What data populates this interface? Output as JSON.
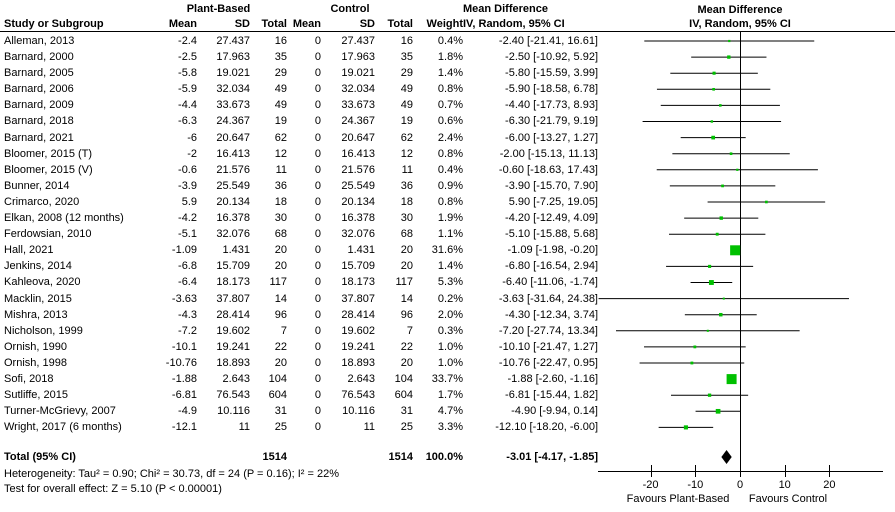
{
  "header": {
    "col_study": "Study or Subgroup",
    "group1": "Plant-Based",
    "group2": "Control",
    "col_mean": "Mean",
    "col_sd": "SD",
    "col_total": "Total",
    "col_weight": "Weight",
    "md_line1": "Mean Difference",
    "md_line2": "IV, Random, 95% CI"
  },
  "chart_data": {
    "type": "forest",
    "effect_measure": "Mean Difference",
    "model": "IV, Random, 95% CI",
    "marker_color": "#00C000",
    "line_color": "#000000",
    "diamond_color": "#000000",
    "studies": [
      {
        "name": "Alleman, 2013",
        "mean1": "-2.4",
        "sd1": "27.437",
        "n1": "16",
        "mean2": "0",
        "sd2": "27.437",
        "n2": "16",
        "weight": "0.4%",
        "ci_text": "-2.40 [-21.41, 16.61]",
        "md": -2.4,
        "lo": -21.41,
        "hi": 16.61,
        "w": 0.4
      },
      {
        "name": "Barnard, 2000",
        "mean1": "-2.5",
        "sd1": "17.963",
        "n1": "35",
        "mean2": "0",
        "sd2": "17.963",
        "n2": "35",
        "weight": "1.8%",
        "ci_text": "-2.50 [-10.92, 5.92]",
        "md": -2.5,
        "lo": -10.92,
        "hi": 5.92,
        "w": 1.8
      },
      {
        "name": "Barnard, 2005",
        "mean1": "-5.8",
        "sd1": "19.021",
        "n1": "29",
        "mean2": "0",
        "sd2": "19.021",
        "n2": "29",
        "weight": "1.4%",
        "ci_text": "-5.80 [-15.59, 3.99]",
        "md": -5.8,
        "lo": -15.59,
        "hi": 3.99,
        "w": 1.4
      },
      {
        "name": "Barnard, 2006",
        "mean1": "-5.9",
        "sd1": "32.034",
        "n1": "49",
        "mean2": "0",
        "sd2": "32.034",
        "n2": "49",
        "weight": "0.8%",
        "ci_text": "-5.90 [-18.58, 6.78]",
        "md": -5.9,
        "lo": -18.58,
        "hi": 6.78,
        "w": 0.8
      },
      {
        "name": "Barnard, 2009",
        "mean1": "-4.4",
        "sd1": "33.673",
        "n1": "49",
        "mean2": "0",
        "sd2": "33.673",
        "n2": "49",
        "weight": "0.7%",
        "ci_text": "-4.40 [-17.73, 8.93]",
        "md": -4.4,
        "lo": -17.73,
        "hi": 8.93,
        "w": 0.7
      },
      {
        "name": "Barnard, 2018",
        "mean1": "-6.3",
        "sd1": "24.367",
        "n1": "19",
        "mean2": "0",
        "sd2": "24.367",
        "n2": "19",
        "weight": "0.6%",
        "ci_text": "-6.30 [-21.79, 9.19]",
        "md": -6.3,
        "lo": -21.79,
        "hi": 9.19,
        "w": 0.6
      },
      {
        "name": "Barnard, 2021",
        "mean1": "-6",
        "sd1": "20.647",
        "n1": "62",
        "mean2": "0",
        "sd2": "20.647",
        "n2": "62",
        "weight": "2.4%",
        "ci_text": "-6.00 [-13.27, 1.27]",
        "md": -6.0,
        "lo": -13.27,
        "hi": 1.27,
        "w": 2.4
      },
      {
        "name": "Bloomer, 2015 (T)",
        "mean1": "-2",
        "sd1": "16.413",
        "n1": "12",
        "mean2": "0",
        "sd2": "16.413",
        "n2": "12",
        "weight": "0.8%",
        "ci_text": "-2.00 [-15.13, 11.13]",
        "md": -2.0,
        "lo": -15.13,
        "hi": 11.13,
        "w": 0.8
      },
      {
        "name": "Bloomer, 2015 (V)",
        "mean1": "-0.6",
        "sd1": "21.576",
        "n1": "11",
        "mean2": "0",
        "sd2": "21.576",
        "n2": "11",
        "weight": "0.4%",
        "ci_text": "-0.60 [-18.63, 17.43]",
        "md": -0.6,
        "lo": -18.63,
        "hi": 17.43,
        "w": 0.4
      },
      {
        "name": "Bunner, 2014",
        "mean1": "-3.9",
        "sd1": "25.549",
        "n1": "36",
        "mean2": "0",
        "sd2": "25.549",
        "n2": "36",
        "weight": "0.9%",
        "ci_text": "-3.90 [-15.70, 7.90]",
        "md": -3.9,
        "lo": -15.7,
        "hi": 7.9,
        "w": 0.9
      },
      {
        "name": "Crimarco, 2020",
        "mean1": "5.9",
        "sd1": "20.134",
        "n1": "18",
        "mean2": "0",
        "sd2": "20.134",
        "n2": "18",
        "weight": "0.8%",
        "ci_text": "5.90 [-7.25, 19.05]",
        "md": 5.9,
        "lo": -7.25,
        "hi": 19.05,
        "w": 0.8
      },
      {
        "name": "Elkan, 2008 (12 months)",
        "mean1": "-4.2",
        "sd1": "16.378",
        "n1": "30",
        "mean2": "0",
        "sd2": "16.378",
        "n2": "30",
        "weight": "1.9%",
        "ci_text": "-4.20 [-12.49, 4.09]",
        "md": -4.2,
        "lo": -12.49,
        "hi": 4.09,
        "w": 1.9
      },
      {
        "name": "Ferdowsian, 2010",
        "mean1": "-5.1",
        "sd1": "32.076",
        "n1": "68",
        "mean2": "0",
        "sd2": "32.076",
        "n2": "68",
        "weight": "1.1%",
        "ci_text": "-5.10 [-15.88, 5.68]",
        "md": -5.1,
        "lo": -15.88,
        "hi": 5.68,
        "w": 1.1
      },
      {
        "name": "Hall, 2021",
        "mean1": "-1.09",
        "sd1": "1.431",
        "n1": "20",
        "mean2": "0",
        "sd2": "1.431",
        "n2": "20",
        "weight": "31.6%",
        "ci_text": "-1.09 [-1.98, -0.20]",
        "md": -1.09,
        "lo": -1.98,
        "hi": -0.2,
        "w": 31.6
      },
      {
        "name": "Jenkins, 2014",
        "mean1": "-6.8",
        "sd1": "15.709",
        "n1": "20",
        "mean2": "0",
        "sd2": "15.709",
        "n2": "20",
        "weight": "1.4%",
        "ci_text": "-6.80 [-16.54, 2.94]",
        "md": -6.8,
        "lo": -16.54,
        "hi": 2.94,
        "w": 1.4
      },
      {
        "name": "Kahleova, 2020",
        "mean1": "-6.4",
        "sd1": "18.173",
        "n1": "117",
        "mean2": "0",
        "sd2": "18.173",
        "n2": "117",
        "weight": "5.3%",
        "ci_text": "-6.40 [-11.06, -1.74]",
        "md": -6.4,
        "lo": -11.06,
        "hi": -1.74,
        "w": 5.3
      },
      {
        "name": "Macklin, 2015",
        "mean1": "-3.63",
        "sd1": "37.807",
        "n1": "14",
        "mean2": "0",
        "sd2": "37.807",
        "n2": "14",
        "weight": "0.2%",
        "ci_text": "-3.63 [-31.64, 24.38]",
        "md": -3.63,
        "lo": -31.64,
        "hi": 24.38,
        "w": 0.2
      },
      {
        "name": "Mishra, 2013",
        "mean1": "-4.3",
        "sd1": "28.414",
        "n1": "96",
        "mean2": "0",
        "sd2": "28.414",
        "n2": "96",
        "weight": "2.0%",
        "ci_text": "-4.30 [-12.34, 3.74]",
        "md": -4.3,
        "lo": -12.34,
        "hi": 3.74,
        "w": 2.0
      },
      {
        "name": "Nicholson, 1999",
        "mean1": "-7.2",
        "sd1": "19.602",
        "n1": "7",
        "mean2": "0",
        "sd2": "19.602",
        "n2": "7",
        "weight": "0.3%",
        "ci_text": "-7.20 [-27.74, 13.34]",
        "md": -7.2,
        "lo": -27.74,
        "hi": 13.34,
        "w": 0.3
      },
      {
        "name": "Ornish, 1990",
        "mean1": "-10.1",
        "sd1": "19.241",
        "n1": "22",
        "mean2": "0",
        "sd2": "19.241",
        "n2": "22",
        "weight": "1.0%",
        "ci_text": "-10.10 [-21.47, 1.27]",
        "md": -10.1,
        "lo": -21.47,
        "hi": 1.27,
        "w": 1.0
      },
      {
        "name": "Ornish, 1998",
        "mean1": "-10.76",
        "sd1": "18.893",
        "n1": "20",
        "mean2": "0",
        "sd2": "18.893",
        "n2": "20",
        "weight": "1.0%",
        "ci_text": "-10.76 [-22.47, 0.95]",
        "md": -10.76,
        "lo": -22.47,
        "hi": 0.95,
        "w": 1.0
      },
      {
        "name": "Sofi, 2018",
        "mean1": "-1.88",
        "sd1": "2.643",
        "n1": "104",
        "mean2": "0",
        "sd2": "2.643",
        "n2": "104",
        "weight": "33.7%",
        "ci_text": "-1.88 [-2.60, -1.16]",
        "md": -1.88,
        "lo": -2.6,
        "hi": -1.16,
        "w": 33.7
      },
      {
        "name": "Sutliffe, 2015",
        "mean1": "-6.81",
        "sd1": "76.543",
        "n1": "604",
        "mean2": "0",
        "sd2": "76.543",
        "n2": "604",
        "weight": "1.7%",
        "ci_text": "-6.81 [-15.44, 1.82]",
        "md": -6.81,
        "lo": -15.44,
        "hi": 1.82,
        "w": 1.7
      },
      {
        "name": "Turner-McGrievy, 2007",
        "mean1": "-4.9",
        "sd1": "10.116",
        "n1": "31",
        "mean2": "0",
        "sd2": "10.116",
        "n2": "31",
        "weight": "4.7%",
        "ci_text": "-4.90 [-9.94, 0.14]",
        "md": -4.9,
        "lo": -9.94,
        "hi": 0.14,
        "w": 4.7
      },
      {
        "name": "Wright, 2017 (6 months)",
        "mean1": "-12.1",
        "sd1": "11",
        "n1": "25",
        "mean2": "0",
        "sd2": "11",
        "n2": "25",
        "weight": "3.3%",
        "ci_text": "-12.10 [-18.20, -6.00]",
        "md": -12.1,
        "lo": -18.2,
        "hi": -6.0,
        "w": 3.3
      }
    ],
    "total": {
      "label": "Total (95% CI)",
      "n1": "1514",
      "n2": "1514",
      "weight": "100.0%",
      "ci_text": "-3.01 [-4.17, -1.85]",
      "md": -3.01,
      "lo": -4.17,
      "hi": -1.85
    },
    "axis": {
      "ticks": [
        -20,
        -10,
        0,
        10,
        20
      ],
      "tick_labels": [
        "-20",
        "-10",
        "0",
        "10",
        "20"
      ],
      "xmin": -31.8,
      "xmax": 32,
      "favours_left": "Favours Plant-Based",
      "favours_right": "Favours Control"
    },
    "footnotes": {
      "heterogeneity": "Heterogeneity: Tau² = 0.90; Chi² = 30.73, df = 24 (P = 0.16); I² = 22%",
      "overall": "Test for overall effect: Z = 5.10 (P < 0.00001)"
    }
  }
}
